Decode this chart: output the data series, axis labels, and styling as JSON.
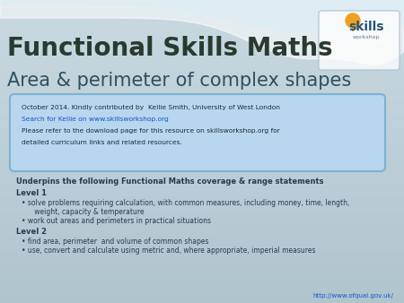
{
  "title_line1": "Functional Skills Maths",
  "title_line2": "Area & perimeter of complex shapes",
  "bg_color_top": "#C8D8E0",
  "bg_color_bottom": "#B0C4CE",
  "box_text_line1": "October 2014. Kindly contributed by  Kellie Smith, University of West London",
  "box_text_line2": "Search for Kellie on www.skillsworkshop.org",
  "box_text_line3": "Please refer to the download page for this resource on skillsworkshop.org for",
  "box_text_line4": "detailed curriculum links and related resources.",
  "body_heading": "Underpins the following Functional Maths coverage & range statements",
  "level1_label": "Level 1",
  "level1_bullets": [
    "solve problems requiring calculation, with common measures, including money, time, length,\n      weight, capacity & temperature",
    "work out areas and perimeters in practical situations"
  ],
  "level2_label": "Level 2",
  "level2_bullets": [
    "find area, perimeter  and volume of common shapes",
    "use, convert and calculate using metric and, where appropriate, imperial measures"
  ],
  "footer_link": "http://www.ofqual.gov.uk/",
  "text_dark": "#1A2A3A",
  "text_body": "#2A3A4A",
  "link_color": "#1155CC",
  "box_fill": "#B8D8F0",
  "box_edge": "#7AB0D0"
}
